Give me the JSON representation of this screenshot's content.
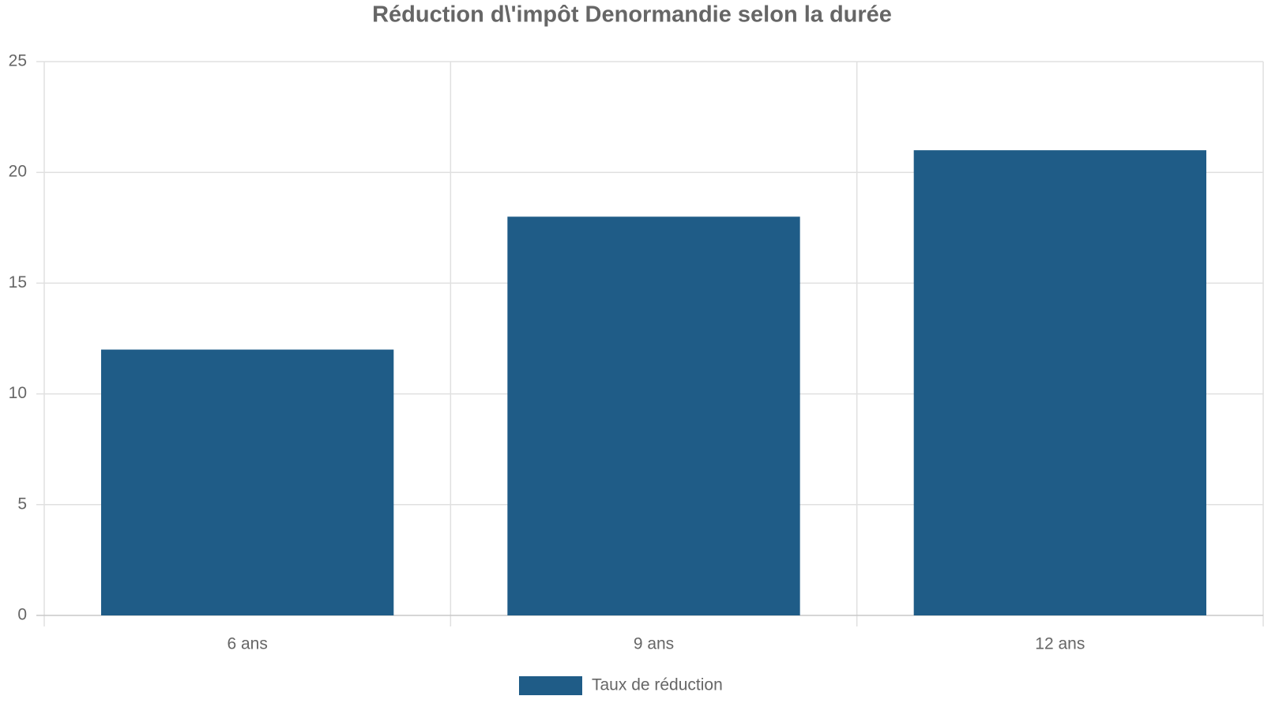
{
  "chart_data": {
    "type": "bar",
    "title": "Réduction d\\'impôt Denormandie selon la durée",
    "categories": [
      "6 ans",
      "9 ans",
      "12 ans"
    ],
    "series": [
      {
        "name": "Taux de réduction",
        "color": "#1f5c87",
        "values": [
          12,
          18,
          21
        ]
      }
    ],
    "ylim": [
      0,
      25
    ],
    "yticks": [
      0,
      5,
      10,
      15,
      20,
      25
    ],
    "grid": true,
    "legend": "bottom"
  }
}
